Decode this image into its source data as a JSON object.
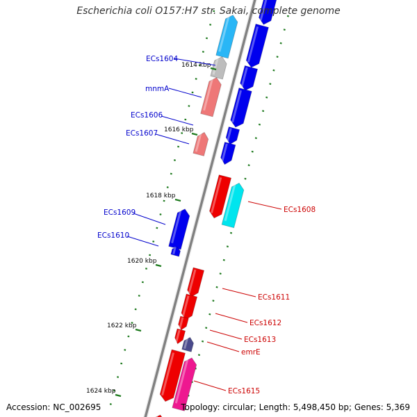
{
  "title": "Escherichia coli O157:H7 str. Sakai, complete genome",
  "footer": {
    "accession": "Accession: NC_002695",
    "stats": "Topology: circular; Length: 5,498,450 bp; Genes: 5,369"
  },
  "colors": {
    "backbone": "#808080",
    "tick": "#1e7a1e",
    "forward_label": "#0000cc",
    "reverse_label": "#cc0000",
    "blue": "#0000ee",
    "red": "#ee0000",
    "sky": "#29b6f6",
    "cyan": "#00e5ee",
    "pink": "#ee7777",
    "gray": "#bdbdbd",
    "navy": "#4a4a8c",
    "magenta": "#ee1890"
  },
  "ruler": [
    {
      "kbp": 1614,
      "label": "1614 kbp"
    },
    {
      "kbp": 1616,
      "label": "1616 kbp"
    },
    {
      "kbp": 1618,
      "label": "1618 kbp"
    },
    {
      "kbp": 1620,
      "label": "1620 kbp"
    },
    {
      "kbp": 1622,
      "label": "1622 kbp"
    },
    {
      "kbp": 1624,
      "label": "1624 kbp"
    }
  ],
  "genes": [
    {
      "label": "ECs1604",
      "strand": "forward",
      "color_key": "blue"
    },
    {
      "label": "mnmA",
      "strand": "forward",
      "color_key": "blue"
    },
    {
      "label": "ECs1606",
      "strand": "forward",
      "color_key": "blue"
    },
    {
      "label": "ECs1607",
      "strand": "forward",
      "color_key": "blue"
    },
    {
      "label": "ECs1608",
      "strand": "reverse",
      "color_key": "red"
    },
    {
      "label": "ECs1609",
      "strand": "forward",
      "color_key": "blue"
    },
    {
      "label": "ECs1610",
      "strand": "forward",
      "color_key": "blue"
    },
    {
      "label": "ECs1611",
      "strand": "reverse",
      "color_key": "red"
    },
    {
      "label": "ECs1612",
      "strand": "reverse",
      "color_key": "red"
    },
    {
      "label": "ECs1613",
      "strand": "reverse",
      "color_key": "red"
    },
    {
      "label": "emrE",
      "strand": "reverse",
      "color_key": "red"
    },
    {
      "label": "ECs1615",
      "strand": "reverse",
      "color_key": "red"
    }
  ]
}
